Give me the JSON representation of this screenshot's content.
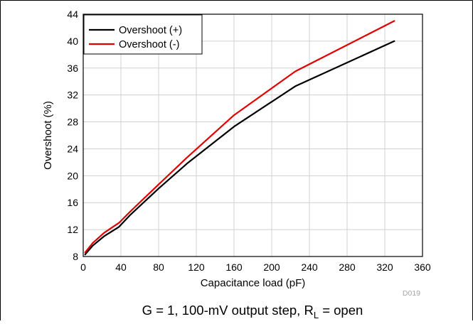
{
  "figure_id": "D019",
  "caption": {
    "prefix": "G = 1, 100-mV output step, R",
    "subscript": "L",
    "suffix": " = open"
  },
  "chart_data": {
    "type": "line",
    "xlabel": "Capacitance load (pF)",
    "ylabel": "Overshoot (%)",
    "xlim": [
      0,
      360
    ],
    "ylim": [
      8,
      44
    ],
    "x_ticks": [
      0,
      40,
      80,
      120,
      160,
      200,
      240,
      280,
      320,
      360
    ],
    "y_ticks": [
      8,
      12,
      16,
      20,
      24,
      28,
      32,
      36,
      40,
      44
    ],
    "x_tick_labels": [
      "0",
      "40",
      "80",
      "120",
      "160",
      "200",
      "240",
      "280",
      "320",
      "360"
    ],
    "y_tick_labels": [
      "8",
      "12",
      "16",
      "20",
      "24",
      "28",
      "32",
      "36",
      "40",
      "44"
    ],
    "grid": true,
    "legend_position": "top-left",
    "series": [
      {
        "name": "Overshoot (+)",
        "color": "#000000",
        "x": [
          2,
          10,
          22,
          38,
          50,
          80,
          110,
          160,
          225,
          330
        ],
        "y": [
          8.3,
          9.6,
          11.0,
          12.4,
          14.2,
          18.1,
          21.8,
          27.3,
          33.3,
          40.0
        ]
      },
      {
        "name": "Overshoot (-)",
        "color": "#e00000",
        "x": [
          2,
          10,
          22,
          38,
          50,
          80,
          110,
          160,
          225,
          330
        ],
        "y": [
          8.6,
          10.0,
          11.5,
          13.0,
          14.7,
          18.7,
          22.7,
          29.0,
          35.5,
          43.0
        ]
      }
    ]
  }
}
